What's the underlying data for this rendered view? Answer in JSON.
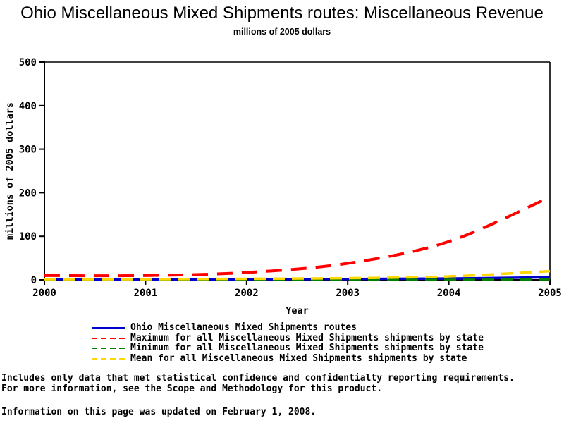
{
  "header": {
    "title": "Ohio Miscellaneous Mixed Shipments routes: Miscellaneous Revenue",
    "subtitle": "millions of 2005 dollars"
  },
  "chart_data": {
    "type": "line",
    "x": [
      2000,
      2001,
      2002,
      2003,
      2004,
      2005
    ],
    "xlabel": "Year",
    "ylabel": "millions of 2005 dollars",
    "ylim": [
      0,
      500
    ],
    "yticks": [
      0,
      100,
      200,
      300,
      400,
      500
    ],
    "grid": false,
    "legend_position": "bottom-left",
    "frame": true,
    "axis_color": "#000000",
    "series": [
      {
        "name": "Ohio Miscellaneous Mixed Shipments routes",
        "color": "#0000CC",
        "style": "solid",
        "width": 3.5,
        "values": [
          2,
          0.5,
          1.5,
          2,
          3,
          6
        ]
      },
      {
        "name": "Maximum for all Miscellaneous Mixed Shipments shipments by state",
        "color": "#FF0000",
        "style": "dashed",
        "width": 4,
        "values": [
          10,
          10,
          17,
          38,
          88,
          190
        ]
      },
      {
        "name": "Minimum for all Miscellaneous Mixed Shipments shipments by state",
        "color": "#008000",
        "style": "dashed",
        "width": 3,
        "values": [
          0.5,
          0.2,
          0.2,
          0.3,
          0.5,
          1
        ]
      },
      {
        "name": "Mean for all Miscellaneous Mixed Shipments shipments by state",
        "color": "#FFD700",
        "style": "dashed",
        "width": 3.5,
        "values": [
          1.5,
          1.5,
          2.5,
          4,
          8,
          20
        ]
      }
    ]
  },
  "footnotes": {
    "line1": "Includes only data that met statistical confidence and confidentialty reporting requirements.",
    "line2": "For more information, see the Scope and Methodology for this product.",
    "line3": "Information on this page was updated on February 1, 2008."
  }
}
